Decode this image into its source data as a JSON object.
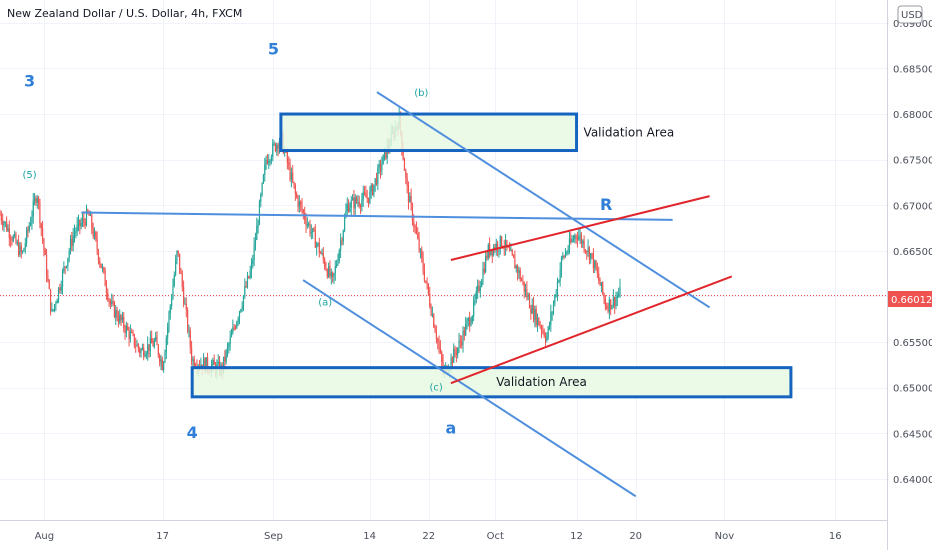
{
  "chart_data": {
    "type": "candlestick",
    "title": "New Zealand Dollar / U.S. Dollar, 4h, FXCM",
    "currency_badge": "USD",
    "x_ticks": [
      {
        "label": "Aug",
        "t": 6
      },
      {
        "label": "17",
        "t": 22
      },
      {
        "label": "Sep",
        "t": 37
      },
      {
        "label": "14",
        "t": 50
      },
      {
        "label": "22",
        "t": 58
      },
      {
        "label": "Oct",
        "t": 67
      },
      {
        "label": "12",
        "t": 78
      },
      {
        "label": "20",
        "t": 86
      },
      {
        "label": "Nov",
        "t": 98
      },
      {
        "label": "16",
        "t": 113
      }
    ],
    "x_range": [
      0,
      120
    ],
    "y_ticks": [
      "0.69000",
      "0.68500",
      "0.68000",
      "0.67500",
      "0.67000",
      "0.66500",
      "0.66000",
      "0.65500",
      "0.65000",
      "0.64500",
      "0.64000"
    ],
    "ylim": [
      0.6355,
      0.6925
    ],
    "last_price": "0.66012",
    "last_price_value": 0.66012,
    "colors": {
      "up": "#26a69a",
      "down": "#ef5350",
      "box_border": "#1565c0",
      "box_fill": "#e8f9e3",
      "trend_blue": "#4f8fde",
      "trend_red": "#e0252b",
      "price_line": "#ef5350"
    },
    "anchors": [
      {
        "t": 0,
        "p": 0.669
      },
      {
        "t": 3,
        "p": 0.6645
      },
      {
        "t": 5,
        "p": 0.6715
      },
      {
        "t": 7,
        "p": 0.658
      },
      {
        "t": 10,
        "p": 0.667
      },
      {
        "t": 12,
        "p": 0.669
      },
      {
        "t": 15,
        "p": 0.659
      },
      {
        "t": 19,
        "p": 0.654
      },
      {
        "t": 21,
        "p": 0.655
      },
      {
        "t": 22,
        "p": 0.6525
      },
      {
        "t": 24,
        "p": 0.665
      },
      {
        "t": 26,
        "p": 0.653
      },
      {
        "t": 30,
        "p": 0.652
      },
      {
        "t": 34,
        "p": 0.663
      },
      {
        "t": 36,
        "p": 0.675
      },
      {
        "t": 38,
        "p": 0.6775
      },
      {
        "t": 40,
        "p": 0.671
      },
      {
        "t": 43,
        "p": 0.6655
      },
      {
        "t": 45,
        "p": 0.6615
      },
      {
        "t": 47,
        "p": 0.67
      },
      {
        "t": 50,
        "p": 0.671
      },
      {
        "t": 53,
        "p": 0.6775
      },
      {
        "t": 54,
        "p": 0.6795
      },
      {
        "t": 55,
        "p": 0.672
      },
      {
        "t": 57,
        "p": 0.664
      },
      {
        "t": 59,
        "p": 0.656
      },
      {
        "t": 60,
        "p": 0.6515
      },
      {
        "t": 62,
        "p": 0.6545
      },
      {
        "t": 64,
        "p": 0.6585
      },
      {
        "t": 66,
        "p": 0.665
      },
      {
        "t": 68,
        "p": 0.666
      },
      {
        "t": 70,
        "p": 0.663
      },
      {
        "t": 72,
        "p": 0.6585
      },
      {
        "t": 74,
        "p": 0.6555
      },
      {
        "t": 76,
        "p": 0.664
      },
      {
        "t": 78,
        "p": 0.667
      },
      {
        "t": 80,
        "p": 0.6645
      },
      {
        "t": 82,
        "p": 0.659
      },
      {
        "t": 83,
        "p": 0.6595
      },
      {
        "t": 84,
        "p": 0.6605
      }
    ],
    "boxes": [
      {
        "label": "Validation Area",
        "t1": 38,
        "t2": 78,
        "p_top": 0.68,
        "p_bottom": 0.676,
        "label_outside": true
      },
      {
        "label": "Validation Area",
        "t1": 26,
        "t2": 107,
        "p_top": 0.6522,
        "p_bottom": 0.649,
        "label_outside": false
      }
    ],
    "trend_lines": [
      {
        "color": "blue",
        "t1": 11,
        "p1": 0.6692,
        "t2": 91,
        "p2": 0.6684
      },
      {
        "color": "blue",
        "t1": 51,
        "p1": 0.6824,
        "t2": 96,
        "p2": 0.6588
      },
      {
        "color": "blue",
        "t1": 41,
        "p1": 0.6618,
        "t2": 86,
        "p2": 0.6381
      },
      {
        "color": "red",
        "t1": 61,
        "p1": 0.664,
        "t2": 96,
        "p2": 0.671
      },
      {
        "color": "red",
        "t1": 61,
        "p1": 0.6505,
        "t2": 99,
        "p2": 0.6622
      }
    ],
    "wave_labels": [
      {
        "text": "3",
        "t": 4,
        "p": 0.683,
        "size": "big"
      },
      {
        "text": "(5)",
        "t": 4,
        "p": 0.673,
        "size": "small"
      },
      {
        "text": "5",
        "t": 37,
        "p": 0.6865,
        "size": "big"
      },
      {
        "text": "4",
        "t": 26,
        "p": 0.6445,
        "size": "big"
      },
      {
        "text": "(b)",
        "t": 57,
        "p": 0.682,
        "size": "small"
      },
      {
        "text": "(a)",
        "t": 44,
        "p": 0.659,
        "size": "small"
      },
      {
        "text": "(c)",
        "t": 59,
        "p": 0.6497,
        "size": "small"
      },
      {
        "text": "a",
        "t": 61,
        "p": 0.645,
        "size": "big"
      },
      {
        "text": "R",
        "t": 82,
        "p": 0.6695,
        "size": "big"
      }
    ]
  }
}
